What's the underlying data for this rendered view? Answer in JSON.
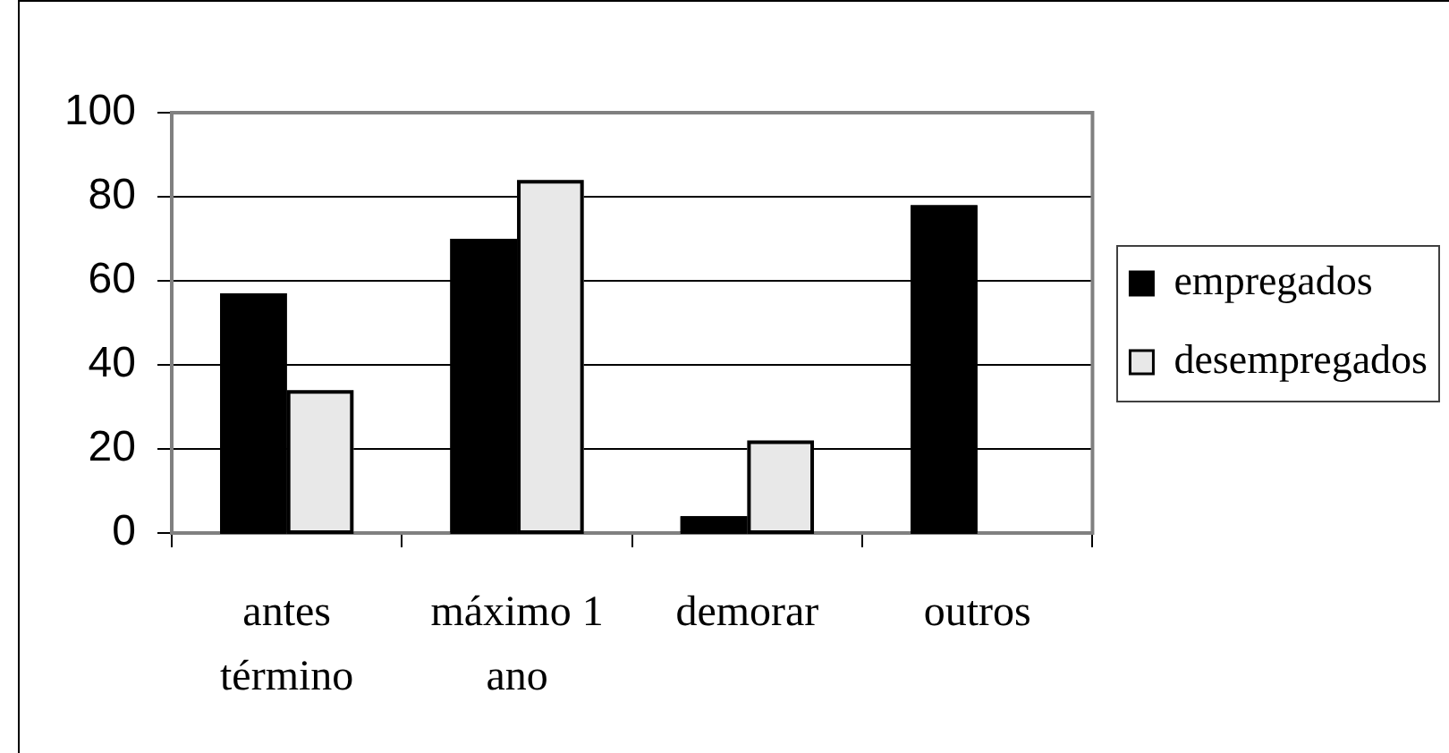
{
  "chart_data": {
    "type": "bar",
    "categories": [
      "antes término",
      "máximo 1 ano",
      "demorar",
      "outros"
    ],
    "series": [
      {
        "name": "empregados",
        "color": "#000000",
        "values": [
          57,
          70,
          4,
          78
        ]
      },
      {
        "name": "desempregados",
        "color": "#e8e8e8",
        "values": [
          34,
          84,
          22,
          null
        ]
      }
    ],
    "ylim": [
      0,
      100
    ],
    "yticks": [
      0,
      20,
      40,
      60,
      80,
      100
    ],
    "grid": "y",
    "legend": "right"
  }
}
